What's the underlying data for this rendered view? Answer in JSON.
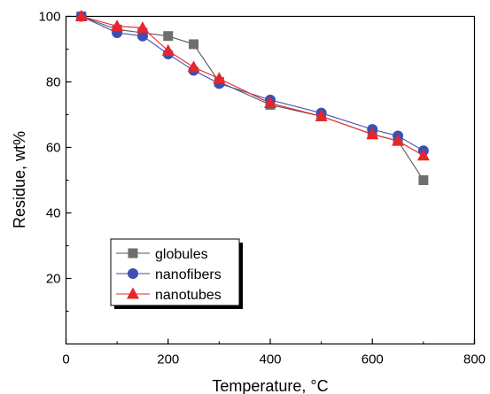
{
  "chart_data": {
    "type": "line",
    "xlabel": "Temperature, °C",
    "ylabel": "Residue, wt%",
    "xlim": [
      0,
      800
    ],
    "ylim": [
      0,
      100
    ],
    "x_ticks": [
      "0",
      "200",
      "400",
      "600",
      "800"
    ],
    "y_ticks": [
      "20",
      "40",
      "60",
      "80",
      "100"
    ],
    "grid": false,
    "legend_position": "bottom-left",
    "series": [
      {
        "name": "globules",
        "marker": "square",
        "color": "#6e6e6e",
        "line_color": "#555555",
        "x": [
          30,
          100,
          150,
          200,
          250,
          300,
          400,
          500,
          600,
          650,
          700
        ],
        "y": [
          100,
          96,
          95,
          94,
          91.5,
          80,
          73,
          69.5,
          64,
          62,
          50
        ]
      },
      {
        "name": "nanofibers",
        "marker": "circle",
        "color": "#3f4fb0",
        "line_color": "#3f4fb0",
        "x": [
          30,
          100,
          150,
          200,
          250,
          300,
          400,
          500,
          600,
          650,
          700
        ],
        "y": [
          100,
          95,
          94,
          88.5,
          83.5,
          79.5,
          74.5,
          70.5,
          65.5,
          63.5,
          59
        ]
      },
      {
        "name": "nanotubes",
        "marker": "triangle",
        "color": "#e8252a",
        "line_color": "#e8252a",
        "x": [
          30,
          100,
          150,
          200,
          250,
          300,
          400,
          500,
          600,
          650,
          700
        ],
        "y": [
          100,
          97,
          96.5,
          89.5,
          84.5,
          81,
          73.5,
          69.5,
          64,
          62,
          57.5
        ]
      }
    ]
  }
}
